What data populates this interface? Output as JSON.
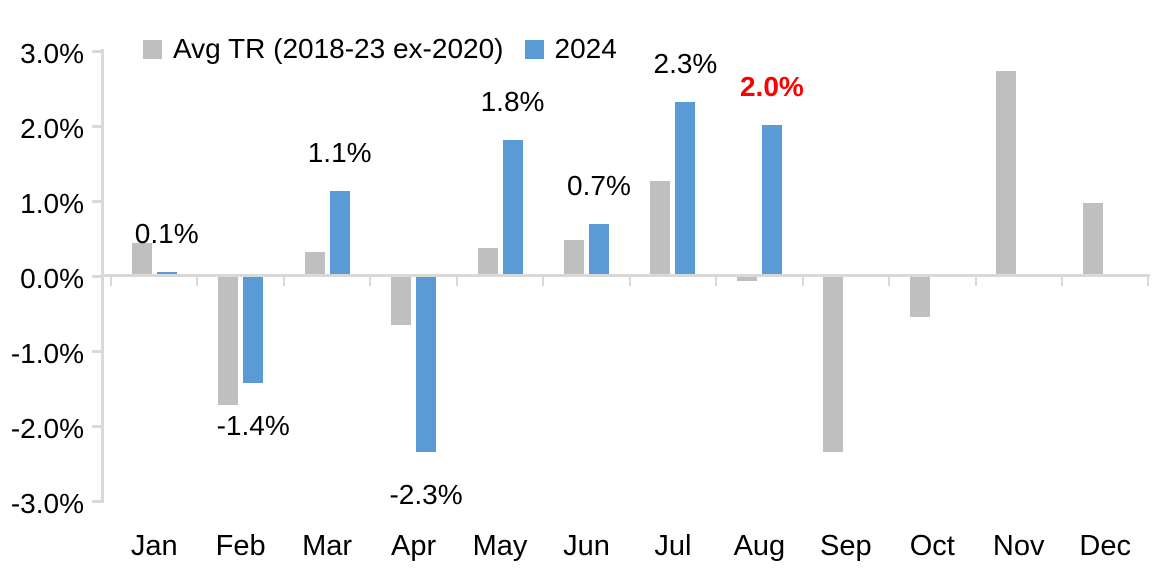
{
  "chart_data": {
    "type": "bar",
    "title": "",
    "xlabel": "",
    "ylabel": "",
    "categories": [
      "Jan",
      "Feb",
      "Mar",
      "Apr",
      "May",
      "Jun",
      "Jul",
      "Aug",
      "Sep",
      "Oct",
      "Nov",
      "Dec"
    ],
    "series": [
      {
        "name": "Avg TR (2018-23 ex-2020)",
        "color": "#BFBFBF",
        "values": [
          0.44,
          -1.72,
          0.32,
          -0.65,
          0.38,
          0.48,
          1.27,
          -0.06,
          -2.34,
          -0.55,
          2.73,
          0.98
        ]
      },
      {
        "name": "2024",
        "color": "#5B9BD5",
        "values": [
          0.06,
          -1.43,
          1.14,
          -2.34,
          1.82,
          0.69,
          2.32,
          2.02,
          null,
          null,
          null,
          null
        ]
      }
    ],
    "data_labels": [
      {
        "category": "Jan",
        "text": "0.1%",
        "color": "#000000",
        "bold": false
      },
      {
        "category": "Feb",
        "text": "-1.4%",
        "color": "#000000",
        "bold": false
      },
      {
        "category": "Mar",
        "text": "1.1%",
        "color": "#000000",
        "bold": false
      },
      {
        "category": "Apr",
        "text": "-2.3%",
        "color": "#000000",
        "bold": false
      },
      {
        "category": "May",
        "text": "1.8%",
        "color": "#000000",
        "bold": false
      },
      {
        "category": "Jun",
        "text": "0.7%",
        "color": "#000000",
        "bold": false
      },
      {
        "category": "Jul",
        "text": "2.3%",
        "color": "#000000",
        "bold": false
      },
      {
        "category": "Aug",
        "text": "2.0%",
        "color": "#FF0000",
        "bold": true
      }
    ],
    "y_axis": {
      "ticks": [
        "3.0%",
        "2.0%",
        "1.0%",
        "0.0%",
        "-1.0%",
        "-2.0%",
        "-3.0%"
      ],
      "tick_values": [
        3,
        2,
        1,
        0,
        -1,
        -2,
        -3
      ],
      "ylim": [
        -3.0,
        3.0
      ]
    },
    "grid": false,
    "legend_position": "top",
    "axis_color": "#D9D9D9",
    "background_color": "#FFFFFF"
  }
}
